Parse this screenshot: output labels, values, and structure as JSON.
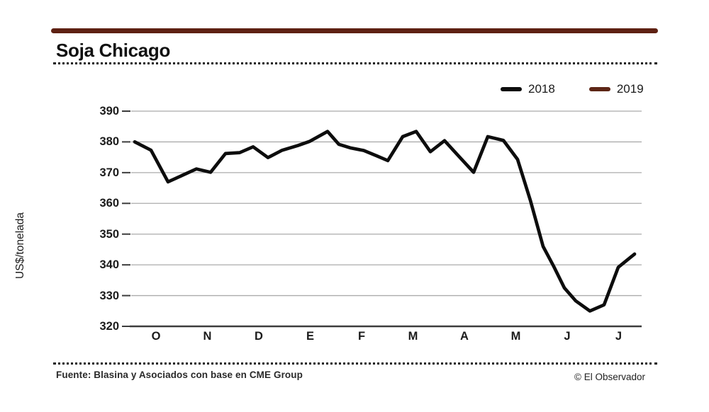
{
  "header": {
    "title": "Soja Chicago"
  },
  "footer": {
    "source": "Fuente: Blasina y Asociados con base en CME Group",
    "credit": "© El Observador"
  },
  "colors": {
    "accent_bar": "#5e2113",
    "grid": "#ababab",
    "axis": "#3c3c3c",
    "line_2018": "#0d0d0d",
    "line_2019": "#5d2616"
  },
  "chart_data": {
    "type": "line",
    "title": "Soja Chicago",
    "xlabel": "",
    "ylabel": "US$/tonelada",
    "ylim": [
      320,
      390
    ],
    "yticks": [
      390,
      380,
      370,
      360,
      350,
      340,
      330,
      320
    ],
    "x_month_labels": [
      "O",
      "N",
      "D",
      "E",
      "F",
      "M",
      "A",
      "M",
      "J",
      "J"
    ],
    "grid": "horizontal-only",
    "legend_position": "top-right",
    "series": [
      {
        "name": "2018",
        "color": "#0d0d0d",
        "points_x_value": [
          [
            190,
            380.0
          ],
          [
            213,
            377.3
          ],
          [
            237,
            367.0
          ],
          [
            277,
            371.2
          ],
          [
            297,
            370.1
          ],
          [
            318,
            376.2
          ],
          [
            338,
            376.5
          ],
          [
            357,
            378.4
          ],
          [
            378,
            374.9
          ],
          [
            398,
            377.3
          ],
          [
            420,
            378.8
          ],
          [
            437,
            380.2
          ],
          [
            462,
            383.4
          ],
          [
            478,
            379.2
          ],
          [
            495,
            378.0
          ],
          [
            513,
            377.2
          ],
          [
            532,
            375.4
          ],
          [
            547,
            373.9
          ],
          [
            568,
            381.7
          ],
          [
            587,
            383.4
          ],
          [
            607,
            376.8
          ],
          [
            627,
            380.4
          ],
          [
            648,
            375.1
          ],
          [
            668,
            370.1
          ],
          [
            688,
            381.7
          ],
          [
            710,
            380.5
          ],
          [
            730,
            374.3
          ],
          [
            748,
            361.0
          ],
          [
            766,
            346.0
          ],
          [
            781,
            339.5
          ],
          [
            796,
            332.5
          ],
          [
            812,
            328.3
          ],
          [
            832,
            325.0
          ],
          [
            852,
            327.0
          ],
          [
            872,
            339.2
          ],
          [
            895,
            343.5
          ]
        ]
      },
      {
        "name": "2019",
        "color": "#5d2616",
        "points_x_value": []
      }
    ]
  }
}
